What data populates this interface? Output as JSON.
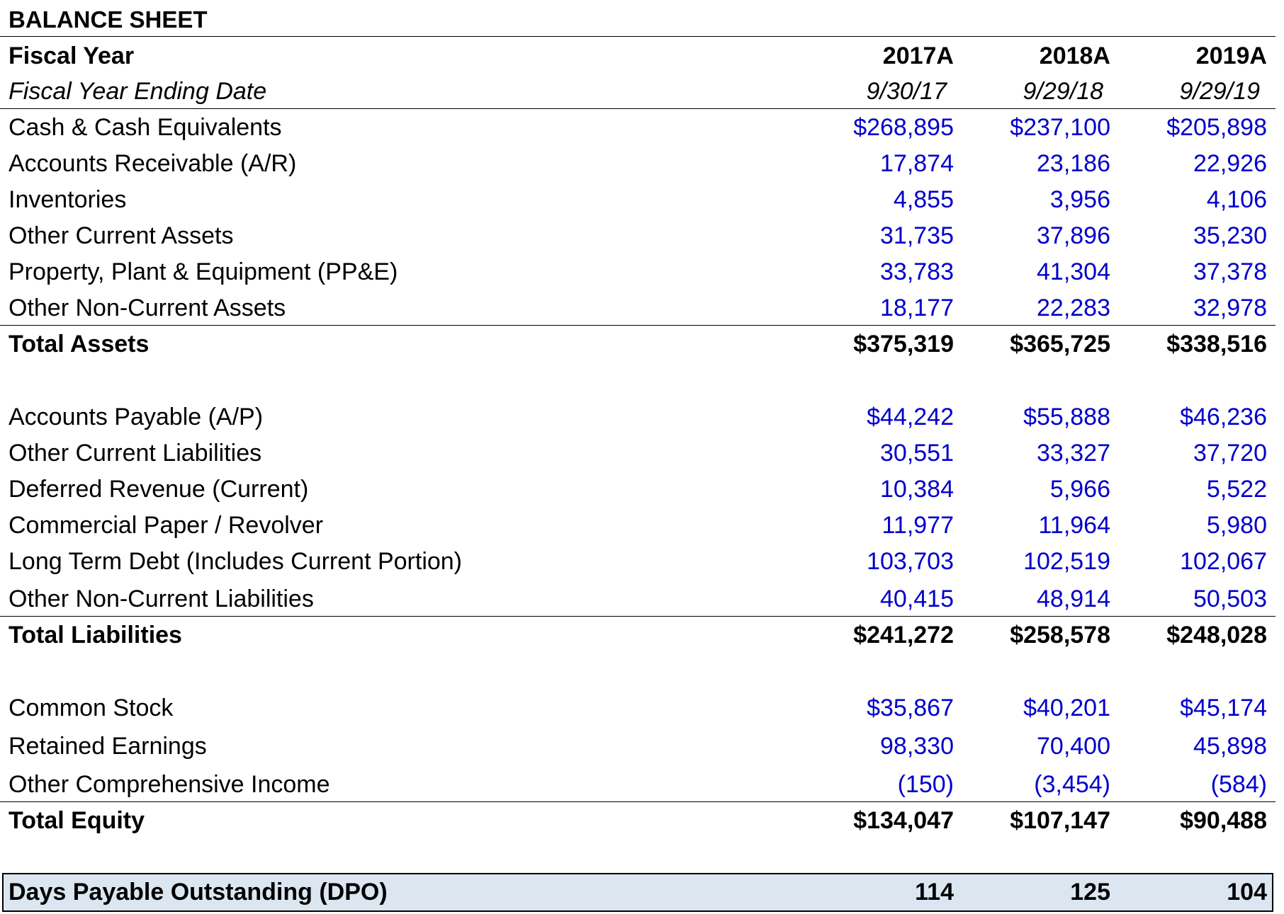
{
  "sheet": {
    "title": "BALANCE SHEET",
    "fiscal_year": {
      "label": "Fiscal Year",
      "values": [
        "2017A",
        "2018A",
        "2019A"
      ]
    },
    "fiscal_year_end": {
      "label": "Fiscal Year Ending Date",
      "values": [
        "9/30/17",
        "9/29/18",
        "9/29/19"
      ]
    },
    "assets": [
      {
        "label": "Cash & Cash Equivalents",
        "values": [
          "$268,895",
          "$237,100",
          "$205,898"
        ]
      },
      {
        "label": "Accounts Receivable (A/R)",
        "values": [
          "17,874",
          "23,186",
          "22,926"
        ]
      },
      {
        "label": "Inventories",
        "values": [
          "4,855",
          "3,956",
          "4,106"
        ]
      },
      {
        "label": "Other Current Assets",
        "values": [
          "31,735",
          "37,896",
          "35,230"
        ]
      },
      {
        "label": "Property, Plant & Equipment (PP&E)",
        "values": [
          "33,783",
          "41,304",
          "37,378"
        ]
      },
      {
        "label": "Other Non-Current Assets",
        "values": [
          "18,177",
          "22,283",
          "32,978"
        ]
      }
    ],
    "total_assets": {
      "label": "Total Assets",
      "values": [
        "$375,319",
        "$365,725",
        "$338,516"
      ]
    },
    "liabilities": [
      {
        "label": "Accounts Payable (A/P)",
        "values": [
          "$44,242",
          "$55,888",
          "$46,236"
        ]
      },
      {
        "label": "Other Current Liabilities",
        "values": [
          "30,551",
          "33,327",
          "37,720"
        ]
      },
      {
        "label": "Deferred Revenue (Current)",
        "values": [
          "10,384",
          "5,966",
          "5,522"
        ]
      },
      {
        "label": "Commercial Paper / Revolver",
        "values": [
          "11,977",
          "11,964",
          "5,980"
        ]
      },
      {
        "label": "Long Term Debt (Includes Current Portion)",
        "values": [
          "103,703",
          "102,519",
          "102,067"
        ]
      },
      {
        "label": "Other Non-Current Liabilities",
        "values": [
          "40,415",
          "48,914",
          "50,503"
        ]
      }
    ],
    "total_liabilities": {
      "label": "Total Liabilities",
      "values": [
        "$241,272",
        "$258,578",
        "$248,028"
      ]
    },
    "equity": [
      {
        "label": "Common Stock",
        "values": [
          "$35,867",
          "$40,201",
          "$45,174"
        ]
      },
      {
        "label": "Retained Earnings",
        "values": [
          "98,330",
          "70,400",
          "45,898"
        ]
      },
      {
        "label": "Other Comprehensive Income",
        "values": [
          "(150)",
          "(3,454)",
          "(584)"
        ]
      }
    ],
    "total_equity": {
      "label": "Total Equity",
      "values": [
        "$134,047",
        "$107,147",
        "$90,488"
      ]
    },
    "dpo": {
      "label": "Days Payable Outstanding (DPO)",
      "values": [
        "114",
        "125",
        "104"
      ]
    }
  },
  "colors": {
    "input_text": "#0000cc",
    "dpo_fill": "#dce6f1"
  }
}
